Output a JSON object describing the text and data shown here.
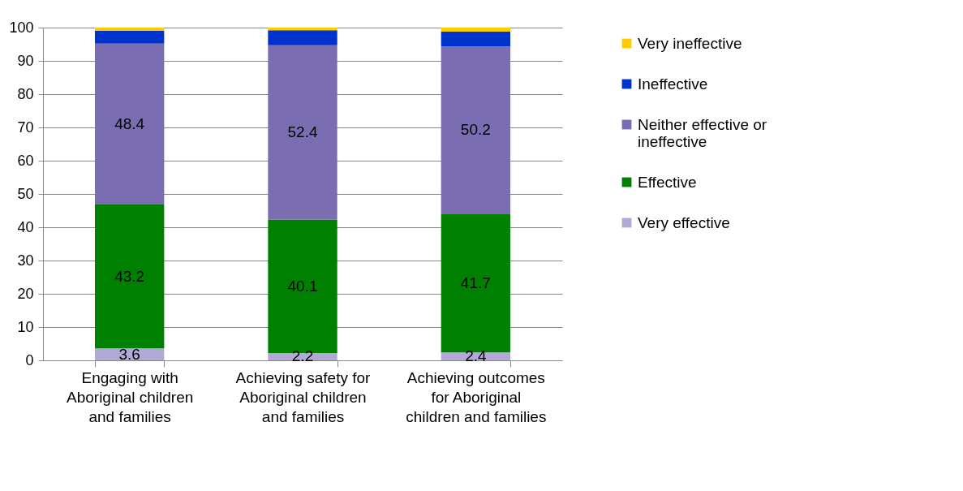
{
  "chart_data": {
    "type": "bar",
    "stacked": true,
    "categories": [
      "Engaging with Aboriginal children and families",
      "Achieving safety for Aboriginal children and families",
      "Achieving outcomes for Aboriginal children and families"
    ],
    "series": [
      {
        "name": "Very effective",
        "color": "#b3a9d6",
        "values": [
          3.6,
          2.2,
          2.4
        ],
        "value_labels": [
          "3.6",
          "2.2",
          "2.4"
        ]
      },
      {
        "name": "Effective",
        "color": "#008000",
        "values": [
          43.2,
          40.1,
          41.7
        ],
        "value_labels": [
          "43.2",
          "40.1",
          "41.7"
        ]
      },
      {
        "name": "Neither effective or ineffective",
        "color": "#7b6db1",
        "values": [
          48.4,
          52.4,
          50.2
        ],
        "value_labels": [
          "48.4",
          "52.4",
          "50.2"
        ]
      },
      {
        "name": "Ineffective",
        "color": "#0033cc",
        "values": [
          3.8,
          4.5,
          4.5
        ]
      },
      {
        "name": "Very ineffective",
        "color": "#ffcc00",
        "values": [
          1.0,
          0.8,
          1.2
        ]
      }
    ],
    "ylim": [
      0,
      100
    ],
    "yticks": [
      0,
      10,
      20,
      30,
      40,
      50,
      60,
      70,
      80,
      90,
      100
    ],
    "grid": "y",
    "legend": "right"
  }
}
